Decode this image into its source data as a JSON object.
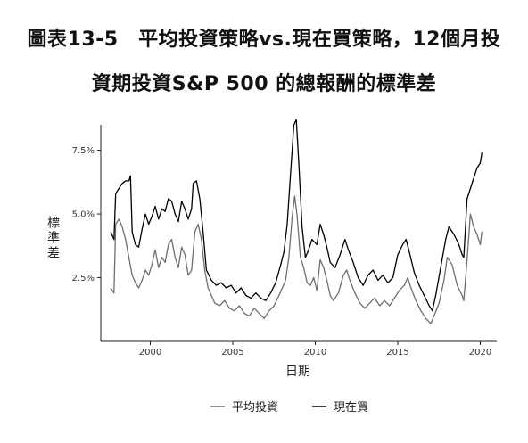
{
  "title_line1": "圖表13-5　平均投資策略vs.現在買策略，12個月投",
  "title_line2": "資期投資S&P 500 的總報酬的標準差",
  "chart_data": {
    "type": "line",
    "title": "圖表13-5　平均投資策略vs.現在買策略，12個月投資期投資S&P 500 的總報酬的標準差",
    "xlabel": "日期",
    "ylabel": "標準差",
    "x_ticks": [
      2000,
      2005,
      2010,
      2015,
      2020
    ],
    "y_ticks": [
      0.025,
      0.05,
      0.075
    ],
    "y_tick_labels": [
      "2.5%",
      "5.0%",
      "7.5%"
    ],
    "xlim": [
      1997.0,
      2021.0
    ],
    "ylim": [
      0.0,
      0.085
    ],
    "grid": false,
    "legend_position": "bottom",
    "series": [
      {
        "name": "平均投資",
        "color": "#6e6e6e",
        "points": [
          [
            1997.6,
            0.021
          ],
          [
            1997.8,
            0.019
          ],
          [
            1997.9,
            0.046
          ],
          [
            1998.1,
            0.048
          ],
          [
            1998.3,
            0.045
          ],
          [
            1998.5,
            0.04
          ],
          [
            1998.7,
            0.033
          ],
          [
            1998.9,
            0.026
          ],
          [
            1999.1,
            0.023
          ],
          [
            1999.3,
            0.021
          ],
          [
            1999.5,
            0.024
          ],
          [
            1999.7,
            0.028
          ],
          [
            1999.9,
            0.026
          ],
          [
            2000.1,
            0.03
          ],
          [
            2000.3,
            0.036
          ],
          [
            2000.5,
            0.029
          ],
          [
            2000.7,
            0.033
          ],
          [
            2000.9,
            0.031
          ],
          [
            2001.1,
            0.038
          ],
          [
            2001.3,
            0.04
          ],
          [
            2001.5,
            0.033
          ],
          [
            2001.7,
            0.029
          ],
          [
            2001.9,
            0.037
          ],
          [
            2002.1,
            0.034
          ],
          [
            2002.3,
            0.026
          ],
          [
            2002.5,
            0.028
          ],
          [
            2002.7,
            0.043
          ],
          [
            2002.9,
            0.046
          ],
          [
            2003.1,
            0.04
          ],
          [
            2003.3,
            0.028
          ],
          [
            2003.5,
            0.021
          ],
          [
            2003.7,
            0.018
          ],
          [
            2003.9,
            0.015
          ],
          [
            2004.2,
            0.014
          ],
          [
            2004.5,
            0.016
          ],
          [
            2004.8,
            0.013
          ],
          [
            2005.1,
            0.012
          ],
          [
            2005.4,
            0.014
          ],
          [
            2005.7,
            0.011
          ],
          [
            2006.0,
            0.01
          ],
          [
            2006.3,
            0.013
          ],
          [
            2006.6,
            0.011
          ],
          [
            2006.9,
            0.009
          ],
          [
            2007.2,
            0.012
          ],
          [
            2007.5,
            0.014
          ],
          [
            2007.8,
            0.018
          ],
          [
            2008.0,
            0.021
          ],
          [
            2008.2,
            0.024
          ],
          [
            2008.4,
            0.033
          ],
          [
            2008.6,
            0.049
          ],
          [
            2008.75,
            0.057
          ],
          [
            2008.9,
            0.049
          ],
          [
            2009.1,
            0.033
          ],
          [
            2009.3,
            0.029
          ],
          [
            2009.5,
            0.023
          ],
          [
            2009.7,
            0.022
          ],
          [
            2009.9,
            0.025
          ],
          [
            2010.1,
            0.02
          ],
          [
            2010.3,
            0.032
          ],
          [
            2010.5,
            0.029
          ],
          [
            2010.7,
            0.024
          ],
          [
            2010.9,
            0.018
          ],
          [
            2011.1,
            0.016
          ],
          [
            2011.4,
            0.019
          ],
          [
            2011.7,
            0.026
          ],
          [
            2011.9,
            0.028
          ],
          [
            2012.1,
            0.024
          ],
          [
            2012.4,
            0.019
          ],
          [
            2012.7,
            0.015
          ],
          [
            2013.0,
            0.013
          ],
          [
            2013.3,
            0.015
          ],
          [
            2013.6,
            0.017
          ],
          [
            2013.9,
            0.014
          ],
          [
            2014.2,
            0.016
          ],
          [
            2014.5,
            0.014
          ],
          [
            2014.8,
            0.017
          ],
          [
            2015.1,
            0.02
          ],
          [
            2015.4,
            0.022
          ],
          [
            2015.6,
            0.025
          ],
          [
            2015.8,
            0.021
          ],
          [
            2016.1,
            0.016
          ],
          [
            2016.4,
            0.012
          ],
          [
            2016.7,
            0.009
          ],
          [
            2017.0,
            0.007
          ],
          [
            2017.2,
            0.01
          ],
          [
            2017.5,
            0.015
          ],
          [
            2017.8,
            0.024
          ],
          [
            2018.0,
            0.033
          ],
          [
            2018.3,
            0.03
          ],
          [
            2018.6,
            0.022
          ],
          [
            2018.9,
            0.018
          ],
          [
            2019.0,
            0.016
          ],
          [
            2019.2,
            0.032
          ],
          [
            2019.4,
            0.05
          ],
          [
            2019.6,
            0.045
          ],
          [
            2019.8,
            0.042
          ],
          [
            2020.0,
            0.038
          ],
          [
            2020.1,
            0.043
          ]
        ]
      },
      {
        "name": "現在買",
        "color": "#000000",
        "points": [
          [
            1997.6,
            0.043
          ],
          [
            1997.8,
            0.04
          ],
          [
            1997.9,
            0.058
          ],
          [
            1998.1,
            0.06
          ],
          [
            1998.3,
            0.062
          ],
          [
            1998.5,
            0.063
          ],
          [
            1998.7,
            0.063
          ],
          [
            1998.8,
            0.065
          ],
          [
            1998.9,
            0.043
          ],
          [
            1999.1,
            0.038
          ],
          [
            1999.3,
            0.037
          ],
          [
            1999.5,
            0.044
          ],
          [
            1999.7,
            0.05
          ],
          [
            1999.9,
            0.046
          ],
          [
            2000.1,
            0.049
          ],
          [
            2000.3,
            0.053
          ],
          [
            2000.5,
            0.048
          ],
          [
            2000.7,
            0.052
          ],
          [
            2000.9,
            0.051
          ],
          [
            2001.1,
            0.056
          ],
          [
            2001.3,
            0.055
          ],
          [
            2001.5,
            0.05
          ],
          [
            2001.7,
            0.047
          ],
          [
            2001.9,
            0.055
          ],
          [
            2002.1,
            0.052
          ],
          [
            2002.3,
            0.048
          ],
          [
            2002.5,
            0.052
          ],
          [
            2002.6,
            0.062
          ],
          [
            2002.8,
            0.063
          ],
          [
            2003.0,
            0.056
          ],
          [
            2003.2,
            0.043
          ],
          [
            2003.4,
            0.028
          ],
          [
            2003.7,
            0.024
          ],
          [
            2004.0,
            0.022
          ],
          [
            2004.3,
            0.023
          ],
          [
            2004.6,
            0.021
          ],
          [
            2004.9,
            0.022
          ],
          [
            2005.2,
            0.019
          ],
          [
            2005.5,
            0.021
          ],
          [
            2005.8,
            0.018
          ],
          [
            2006.1,
            0.017
          ],
          [
            2006.4,
            0.019
          ],
          [
            2006.7,
            0.017
          ],
          [
            2007.0,
            0.016
          ],
          [
            2007.3,
            0.019
          ],
          [
            2007.6,
            0.023
          ],
          [
            2007.9,
            0.03
          ],
          [
            2008.1,
            0.035
          ],
          [
            2008.3,
            0.046
          ],
          [
            2008.5,
            0.066
          ],
          [
            2008.7,
            0.085
          ],
          [
            2008.85,
            0.087
          ],
          [
            2009.0,
            0.07
          ],
          [
            2009.2,
            0.045
          ],
          [
            2009.4,
            0.033
          ],
          [
            2009.6,
            0.036
          ],
          [
            2009.8,
            0.04
          ],
          [
            2010.1,
            0.038
          ],
          [
            2010.3,
            0.046
          ],
          [
            2010.5,
            0.042
          ],
          [
            2010.7,
            0.037
          ],
          [
            2010.9,
            0.031
          ],
          [
            2011.2,
            0.029
          ],
          [
            2011.5,
            0.034
          ],
          [
            2011.8,
            0.04
          ],
          [
            2012.0,
            0.036
          ],
          [
            2012.3,
            0.031
          ],
          [
            2012.6,
            0.025
          ],
          [
            2012.9,
            0.022
          ],
          [
            2013.2,
            0.026
          ],
          [
            2013.5,
            0.028
          ],
          [
            2013.8,
            0.024
          ],
          [
            2014.1,
            0.026
          ],
          [
            2014.4,
            0.023
          ],
          [
            2014.7,
            0.025
          ],
          [
            2015.0,
            0.034
          ],
          [
            2015.3,
            0.038
          ],
          [
            2015.5,
            0.04
          ],
          [
            2015.7,
            0.035
          ],
          [
            2016.0,
            0.027
          ],
          [
            2016.3,
            0.022
          ],
          [
            2016.6,
            0.018
          ],
          [
            2016.9,
            0.014
          ],
          [
            2017.1,
            0.012
          ],
          [
            2017.3,
            0.018
          ],
          [
            2017.6,
            0.029
          ],
          [
            2017.9,
            0.04
          ],
          [
            2018.1,
            0.045
          ],
          [
            2018.4,
            0.042
          ],
          [
            2018.7,
            0.038
          ],
          [
            2018.9,
            0.034
          ],
          [
            2019.0,
            0.033
          ],
          [
            2019.2,
            0.056
          ],
          [
            2019.4,
            0.06
          ],
          [
            2019.6,
            0.064
          ],
          [
            2019.8,
            0.068
          ],
          [
            2020.0,
            0.07
          ],
          [
            2020.1,
            0.074
          ]
        ]
      }
    ]
  }
}
